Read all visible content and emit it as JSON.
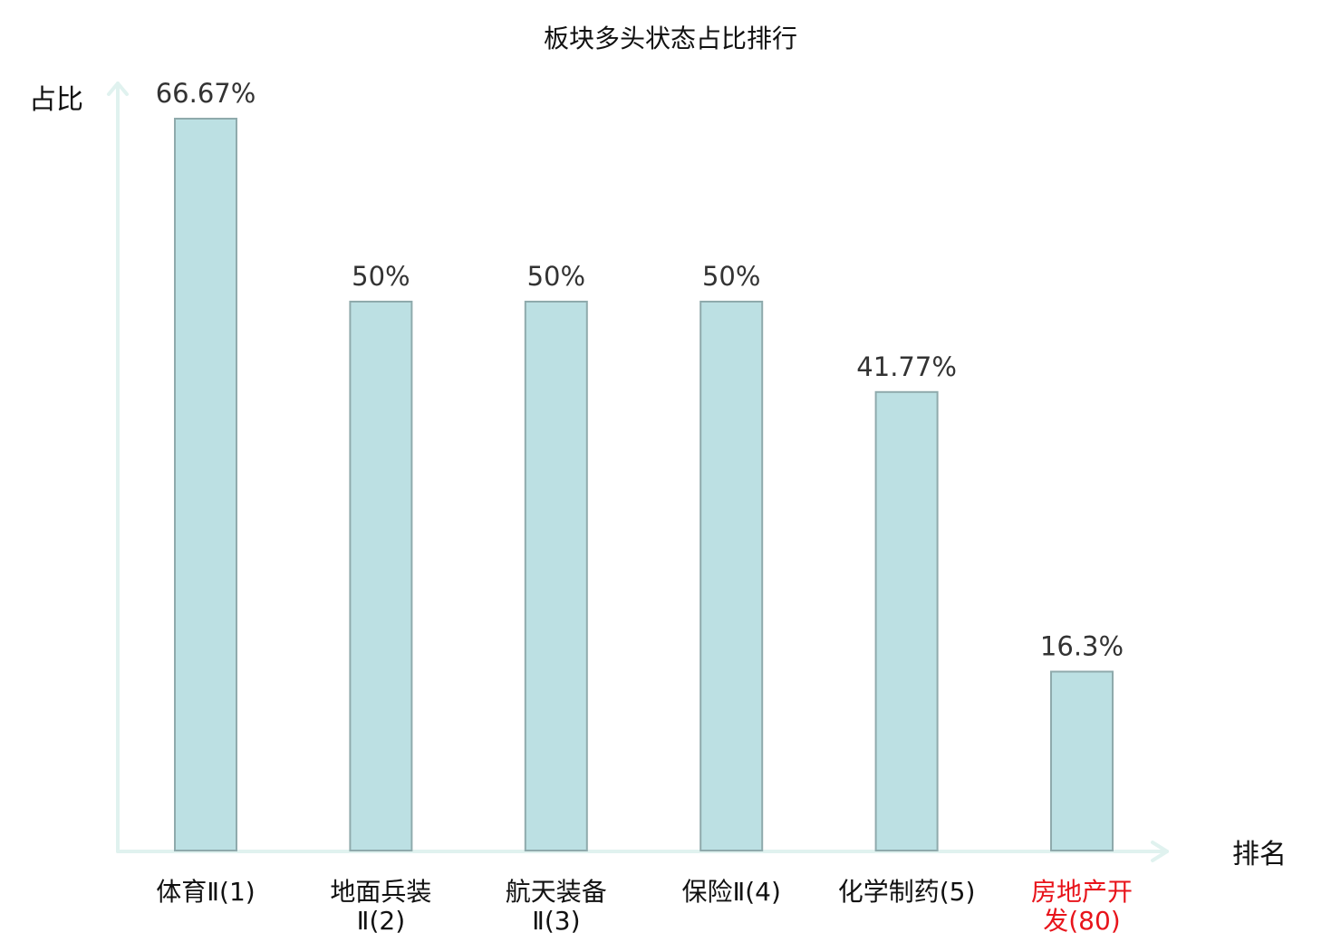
{
  "chart_data": {
    "type": "bar",
    "title": "板块多头状态占比排行",
    "ylabel": "占比",
    "xlabel": "排名",
    "ylim": [
      0,
      70
    ],
    "grid": false,
    "categories": [
      {
        "name": "体育Ⅱ",
        "rank": "(1)",
        "highlight": false
      },
      {
        "name": "地面兵装Ⅱ",
        "rank": "(2)",
        "highlight": false
      },
      {
        "name": "航天装备Ⅱ",
        "rank": "(3)",
        "highlight": false
      },
      {
        "name": "保险Ⅱ",
        "rank": "(4)",
        "highlight": false
      },
      {
        "name": "化学制药",
        "rank": "(5)",
        "highlight": false
      },
      {
        "name": "房地产开发",
        "rank": "(80)",
        "highlight": true
      }
    ],
    "values": [
      66.67,
      50,
      50,
      50,
      41.77,
      16.3
    ],
    "value_labels": [
      "66.67%",
      "50%",
      "50%",
      "50%",
      "41.77%",
      "16.3%"
    ],
    "colors": {
      "bar_fill": "#bce0e3",
      "bar_stroke": "#8faaac",
      "axis": "#e0f2ef",
      "normal_label": "#111111",
      "highlight_label": "#e8141b",
      "value_label": "#333333"
    }
  }
}
